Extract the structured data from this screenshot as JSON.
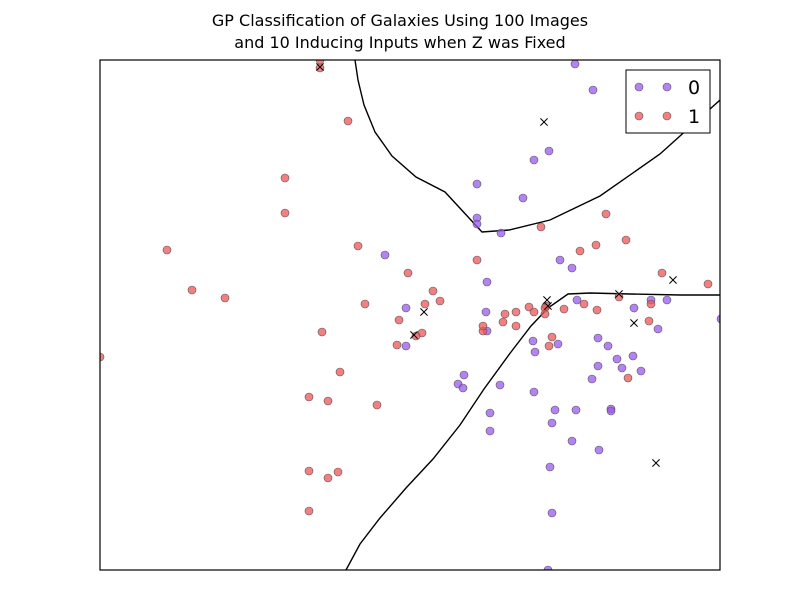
{
  "chart_data": {
    "type": "scatter",
    "title_lines": [
      "GP Classification of Galaxies Using 100 Images",
      "and 10 Inducing Inputs when Z was Fixed"
    ],
    "xlabel": "",
    "ylabel": "",
    "xticks": false,
    "yticks": false,
    "xlim": [
      0,
      620
    ],
    "ylim": [
      0,
      510
    ],
    "grid": false,
    "legend_position": "top-right",
    "series": [
      {
        "name": "0",
        "color": "#9b59ef",
        "points": [
          [
            475,
            506
          ],
          [
            493,
            480
          ],
          [
            449,
            419
          ],
          [
            434,
            410
          ],
          [
            423,
            372
          ],
          [
            377,
            386
          ],
          [
            377,
            352
          ],
          [
            285,
            315
          ],
          [
            306,
            262
          ],
          [
            306,
            224
          ],
          [
            460,
            310
          ],
          [
            472,
            302
          ],
          [
            477,
            270
          ],
          [
            386,
            258
          ],
          [
            387,
            239
          ],
          [
            400,
            185
          ],
          [
            358,
            186
          ],
          [
            363,
            182
          ],
          [
            390,
            157
          ],
          [
            390,
            139
          ],
          [
            435,
            218
          ],
          [
            434,
            178
          ],
          [
            452,
            147
          ],
          [
            472,
            129
          ],
          [
            498,
            232
          ],
          [
            498,
            204
          ],
          [
            541,
            199
          ],
          [
            551,
            270
          ],
          [
            534,
            262
          ],
          [
            517,
            211
          ],
          [
            508,
            224
          ],
          [
            533,
            214
          ],
          [
            522,
            202
          ],
          [
            511,
            161
          ],
          [
            492,
            191
          ],
          [
            476,
            160
          ],
          [
            455,
            160
          ],
          [
            511,
            159
          ],
          [
            450,
            103
          ],
          [
            452,
            57
          ],
          [
            499,
            120
          ],
          [
            621,
            251
          ],
          [
            458,
            226
          ],
          [
            558,
            241
          ],
          [
            567,
            270
          ],
          [
            387,
            288
          ],
          [
            377,
            346
          ],
          [
            401,
            337
          ],
          [
            433,
            229
          ],
          [
            364,
            195
          ],
          [
            448,
            0
          ]
        ]
      },
      {
        "name": "1",
        "color": "#ee5555",
        "points": [
          [
            220,
            502
          ],
          [
            248,
            449
          ],
          [
            185,
            392
          ],
          [
            185,
            357
          ],
          [
            67,
            320
          ],
          [
            92,
            280
          ],
          [
            125,
            272
          ],
          [
            258,
            324
          ],
          [
            308,
            297
          ],
          [
            265,
            266
          ],
          [
            333,
            279
          ],
          [
            340,
            269
          ],
          [
            299,
            250
          ],
          [
            322,
            237
          ],
          [
            316,
            234
          ],
          [
            297,
            225
          ],
          [
            377,
            310
          ],
          [
            403,
            248
          ],
          [
            416,
            244
          ],
          [
            429,
            263
          ],
          [
            446,
            264
          ],
          [
            441,
            343
          ],
          [
            506,
            356
          ],
          [
            526,
            330
          ],
          [
            496,
            325
          ],
          [
            480,
            319
          ],
          [
            484,
            266
          ],
          [
            464,
            261
          ],
          [
            445,
            262
          ],
          [
            449,
            224
          ],
          [
            452,
            233
          ],
          [
            445,
            256
          ],
          [
            562,
            297
          ],
          [
            608,
            286
          ],
          [
            519,
            273
          ],
          [
            549,
            249
          ],
          [
            528,
            192
          ],
          [
            551,
            266
          ],
          [
            383,
            239
          ],
          [
            416,
            258
          ],
          [
            434,
            258
          ],
          [
            405,
            256
          ],
          [
            497,
            260
          ],
          [
            383,
            244
          ],
          [
            0,
            213
          ],
          [
            209,
            173
          ],
          [
            222,
            238
          ],
          [
            228,
            169
          ],
          [
            240,
            198
          ],
          [
            209,
            99
          ],
          [
            238,
            98
          ],
          [
            277,
            165
          ],
          [
            209,
            59
          ],
          [
            228,
            92
          ],
          [
            220,
            510
          ],
          [
            325,
            266
          ]
        ]
      }
    ],
    "inducing_inputs": {
      "marker": "x",
      "points": [
        [
          220,
          503
        ],
        [
          444,
          448
        ],
        [
          324,
          258
        ],
        [
          314,
          235
        ],
        [
          447,
          270
        ],
        [
          448,
          264
        ],
        [
          519,
          276
        ],
        [
          534,
          247
        ],
        [
          573,
          290
        ],
        [
          556,
          107
        ]
      ]
    },
    "decision_boundary": [
      {
        "points": [
          [
            255,
            510
          ],
          [
            258,
            490
          ],
          [
            264,
            465
          ],
          [
            275,
            438
          ],
          [
            292,
            414
          ],
          [
            316,
            393
          ],
          [
            345,
            378
          ],
          [
            382,
            338
          ],
          [
            409,
            340
          ],
          [
            450,
            350
          ],
          [
            500,
            374
          ],
          [
            560,
            416
          ],
          [
            620,
            470
          ]
        ]
      },
      {
        "points": [
          [
            246,
            0
          ],
          [
            260,
            26
          ],
          [
            280,
            52
          ],
          [
            306,
            82
          ],
          [
            333,
            111
          ],
          [
            360,
            145
          ],
          [
            384,
            181
          ],
          [
            411,
            218
          ],
          [
            431,
            244
          ],
          [
            448,
            262
          ],
          [
            468,
            276
          ],
          [
            490,
            277
          ],
          [
            530,
            276
          ],
          [
            580,
            275
          ],
          [
            620,
            275
          ]
        ]
      }
    ]
  }
}
